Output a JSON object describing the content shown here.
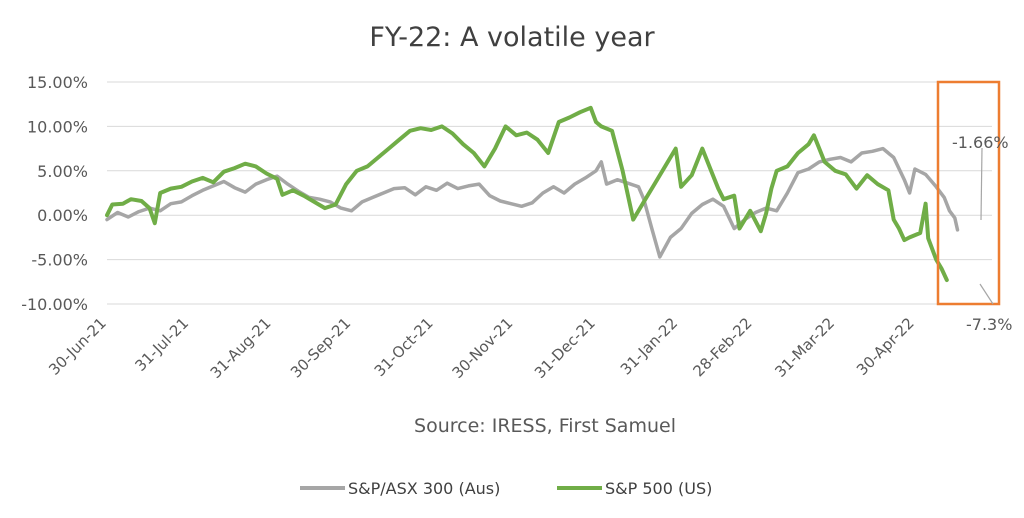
{
  "chart_data": {
    "type": "line",
    "title": "FY-22: A volatile year",
    "caption": "Source: IRESS, First Samuel",
    "y_ticks": [
      "15.00%",
      "10.00%",
      "5.00%",
      "0.00%",
      "-5.00%",
      "-10.00%"
    ],
    "ylim": [
      -10,
      15
    ],
    "x_ticks": [
      "30-Jun-21",
      "31-Jul-21",
      "31-Aug-21",
      "30-Sep-21",
      "31-Oct-21",
      "30-Nov-21",
      "31-Dec-21",
      "31-Jan-22",
      "28-Feb-22",
      "31-Mar-22",
      "30-Apr-22"
    ],
    "x_tick_days": [
      0,
      31,
      62,
      92,
      123,
      153,
      184,
      215,
      243,
      274,
      304
    ],
    "x_end_day": 333,
    "grid": "horizontal",
    "legend": "bottom",
    "series": [
      {
        "name": "S&P/ASX 300 (Aus)",
        "color": "#a6a6a6",
        "points": [
          [
            0,
            -0.5
          ],
          [
            4,
            0.3
          ],
          [
            8,
            -0.2
          ],
          [
            12,
            0.4
          ],
          [
            16,
            0.8
          ],
          [
            20,
            0.5
          ],
          [
            24,
            1.3
          ],
          [
            28,
            1.5
          ],
          [
            32,
            2.2
          ],
          [
            36,
            2.8
          ],
          [
            40,
            3.3
          ],
          [
            44,
            3.8
          ],
          [
            48,
            3.1
          ],
          [
            52,
            2.6
          ],
          [
            56,
            3.5
          ],
          [
            60,
            4.0
          ],
          [
            64,
            4.4
          ],
          [
            68,
            3.5
          ],
          [
            72,
            2.7
          ],
          [
            76,
            2.0
          ],
          [
            80,
            1.8
          ],
          [
            84,
            1.5
          ],
          [
            88,
            0.8
          ],
          [
            92,
            0.5
          ],
          [
            96,
            1.5
          ],
          [
            100,
            2.0
          ],
          [
            104,
            2.5
          ],
          [
            108,
            3.0
          ],
          [
            112,
            3.1
          ],
          [
            116,
            2.3
          ],
          [
            120,
            3.2
          ],
          [
            124,
            2.8
          ],
          [
            128,
            3.6
          ],
          [
            132,
            3.0
          ],
          [
            136,
            3.3
          ],
          [
            140,
            3.5
          ],
          [
            144,
            2.2
          ],
          [
            148,
            1.6
          ],
          [
            152,
            1.3
          ],
          [
            156,
            1.0
          ],
          [
            160,
            1.4
          ],
          [
            164,
            2.5
          ],
          [
            168,
            3.2
          ],
          [
            172,
            2.5
          ],
          [
            176,
            3.5
          ],
          [
            180,
            4.2
          ],
          [
            184,
            5.0
          ],
          [
            186,
            6.0
          ],
          [
            188,
            3.5
          ],
          [
            192,
            4.0
          ],
          [
            196,
            3.6
          ],
          [
            200,
            3.2
          ],
          [
            202,
            1.8
          ],
          [
            205,
            -1.5
          ],
          [
            208,
            -4.7
          ],
          [
            212,
            -2.5
          ],
          [
            216,
            -1.5
          ],
          [
            220,
            0.2
          ],
          [
            224,
            1.2
          ],
          [
            228,
            1.8
          ],
          [
            232,
            1.0
          ],
          [
            236,
            -1.5
          ],
          [
            240,
            -0.5
          ],
          [
            244,
            0.3
          ],
          [
            248,
            0.8
          ],
          [
            252,
            0.5
          ],
          [
            256,
            2.5
          ],
          [
            260,
            4.8
          ],
          [
            264,
            5.2
          ],
          [
            268,
            6.0
          ],
          [
            272,
            6.3
          ],
          [
            276,
            6.5
          ],
          [
            280,
            6.0
          ],
          [
            284,
            7.0
          ],
          [
            288,
            7.2
          ],
          [
            292,
            7.5
          ],
          [
            296,
            6.5
          ],
          [
            300,
            4.0
          ],
          [
            302,
            2.5
          ],
          [
            304,
            5.2
          ],
          [
            308,
            4.6
          ],
          [
            312,
            3.2
          ],
          [
            315,
            2.0
          ],
          [
            317,
            0.5
          ],
          [
            319,
            -0.3
          ],
          [
            320,
            -1.66
          ]
        ]
      },
      {
        "name": "S&P 500 (US)",
        "color": "#70ad47",
        "points": [
          [
            0,
            0.0
          ],
          [
            2,
            1.2
          ],
          [
            6,
            1.3
          ],
          [
            9,
            1.8
          ],
          [
            13,
            1.6
          ],
          [
            16,
            0.8
          ],
          [
            18,
            -0.9
          ],
          [
            20,
            2.5
          ],
          [
            24,
            3.0
          ],
          [
            28,
            3.2
          ],
          [
            32,
            3.8
          ],
          [
            36,
            4.2
          ],
          [
            40,
            3.7
          ],
          [
            44,
            4.9
          ],
          [
            48,
            5.3
          ],
          [
            52,
            5.8
          ],
          [
            56,
            5.5
          ],
          [
            60,
            4.7
          ],
          [
            64,
            4.1
          ],
          [
            66,
            2.3
          ],
          [
            70,
            2.8
          ],
          [
            74,
            2.2
          ],
          [
            78,
            1.5
          ],
          [
            82,
            0.8
          ],
          [
            86,
            1.2
          ],
          [
            90,
            3.5
          ],
          [
            94,
            5.0
          ],
          [
            98,
            5.5
          ],
          [
            102,
            6.5
          ],
          [
            106,
            7.5
          ],
          [
            110,
            8.5
          ],
          [
            114,
            9.5
          ],
          [
            118,
            9.8
          ],
          [
            122,
            9.6
          ],
          [
            126,
            10.0
          ],
          [
            130,
            9.2
          ],
          [
            134,
            8.0
          ],
          [
            138,
            7.0
          ],
          [
            142,
            5.5
          ],
          [
            146,
            7.5
          ],
          [
            150,
            10.0
          ],
          [
            154,
            9.0
          ],
          [
            158,
            9.3
          ],
          [
            162,
            8.5
          ],
          [
            166,
            7.0
          ],
          [
            170,
            10.5
          ],
          [
            174,
            11.0
          ],
          [
            178,
            11.6
          ],
          [
            182,
            12.1
          ],
          [
            184,
            10.5
          ],
          [
            186,
            10.0
          ],
          [
            190,
            9.5
          ],
          [
            194,
            5.0
          ],
          [
            198,
            -0.5
          ],
          [
            202,
            1.5
          ],
          [
            206,
            3.5
          ],
          [
            210,
            5.5
          ],
          [
            214,
            7.5
          ],
          [
            216,
            3.2
          ],
          [
            220,
            4.5
          ],
          [
            224,
            7.5
          ],
          [
            228,
            4.5
          ],
          [
            230,
            3.0
          ],
          [
            232,
            1.8
          ],
          [
            236,
            2.2
          ],
          [
            238,
            -1.5
          ],
          [
            242,
            0.5
          ],
          [
            246,
            -1.8
          ],
          [
            248,
            0.2
          ],
          [
            250,
            3.0
          ],
          [
            252,
            5.0
          ],
          [
            256,
            5.5
          ],
          [
            260,
            7.0
          ],
          [
            264,
            8.0
          ],
          [
            266,
            9.0
          ],
          [
            268,
            7.5
          ],
          [
            270,
            6.0
          ],
          [
            274,
            5.0
          ],
          [
            278,
            4.6
          ],
          [
            282,
            3.0
          ],
          [
            286,
            4.5
          ],
          [
            290,
            3.5
          ],
          [
            294,
            2.8
          ],
          [
            296,
            -0.5
          ],
          [
            298,
            -1.5
          ],
          [
            300,
            -2.8
          ],
          [
            302,
            -2.5
          ],
          [
            306,
            -2.0
          ],
          [
            308,
            1.3
          ],
          [
            309,
            -2.6
          ],
          [
            312,
            -5.0
          ],
          [
            314,
            -6.0
          ],
          [
            316,
            -7.3
          ]
        ]
      }
    ],
    "annotations": [
      "-1.66%",
      "-7.3%"
    ],
    "highlight_box_color": "#ed7d31"
  }
}
